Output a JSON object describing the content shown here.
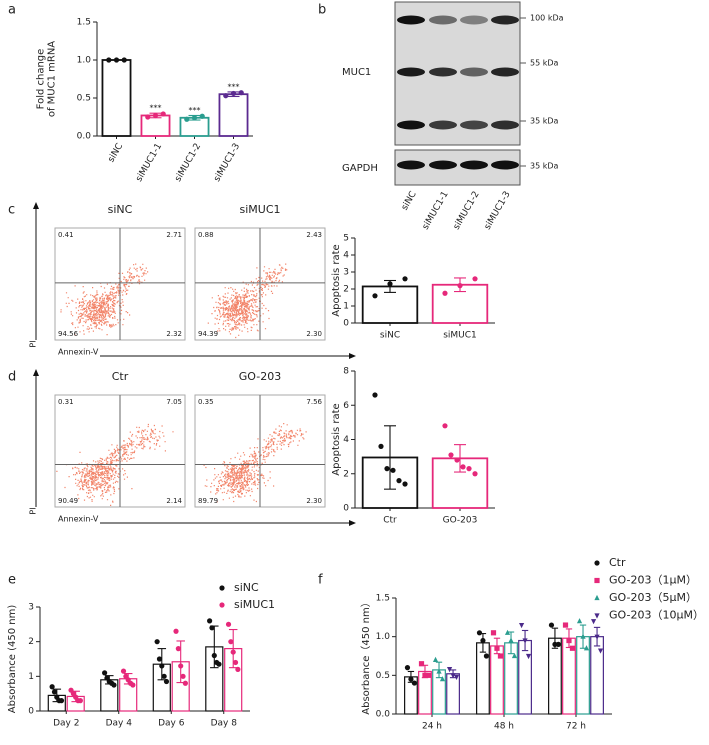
{
  "chart_data": [
    {
      "type": "bar",
      "panel": "a",
      "y_label": [
        "Fold change",
        "of MUC1 mRNA"
      ],
      "categories": [
        "siNC",
        "siMUC1-1",
        "siMUC1-2",
        "siMUC1-3"
      ],
      "values": [
        1.0,
        0.27,
        0.24,
        0.55
      ],
      "errors": [
        0,
        0.03,
        0.03,
        0.03
      ],
      "points": [
        [
          1.0,
          1.0,
          1.0
        ],
        [
          0.25,
          0.27,
          0.29
        ],
        [
          0.22,
          0.24,
          0.26
        ],
        [
          0.53,
          0.56,
          0.57
        ]
      ],
      "significance": [
        null,
        "***",
        "***",
        "***"
      ],
      "colors": [
        "#111111",
        "#e6287a",
        "#2a9d8f",
        "#5b2a90"
      ],
      "ylim": [
        0,
        1.5
      ],
      "yticks": [
        {
          "value": 0,
          "label": "0.0"
        },
        0.5,
        {
          "value": 1,
          "label": "1.0"
        },
        1.5
      ]
    },
    {
      "type": "bar",
      "y_label": "Apoptosis rate",
      "categories": [
        "siNC",
        "siMUC1"
      ],
      "values": [
        2.15,
        2.25
      ],
      "errors": [
        0.35,
        0.4
      ],
      "points": [
        [
          1.6,
          2.3,
          2.6
        ],
        [
          1.75,
          2.2,
          2.6
        ]
      ],
      "colors": [
        "#111111",
        "#e6287a"
      ],
      "ylim": [
        0,
        5
      ],
      "yticks": [
        0,
        1,
        2,
        3,
        4,
        5
      ]
    },
    {
      "type": "bar",
      "y_label": "Apoptosis rate",
      "categories": [
        "Ctr",
        "GO-203"
      ],
      "values": [
        2.95,
        2.9
      ],
      "errors": [
        1.85,
        0.8
      ],
      "points": [
        [
          6.6,
          3.6,
          2.3,
          2.2,
          1.6,
          1.4
        ],
        [
          4.8,
          3.1,
          2.8,
          2.4,
          2.3,
          2.0
        ]
      ],
      "colors": [
        "#111111",
        "#e6287a"
      ],
      "ylim": [
        0,
        8
      ],
      "yticks": [
        0,
        2,
        4,
        6,
        8
      ]
    },
    {
      "type": "bar",
      "panel": "e",
      "y_label": "Absorbance (450 nm)",
      "categories": [
        "Day 2",
        "Day 4",
        "Day 6",
        "Day 8"
      ],
      "series": [
        {
          "name": "siNC",
          "color": "#111111",
          "marker": "circle",
          "values": [
            0.45,
            0.9,
            1.35,
            1.85
          ],
          "errors": [
            0.18,
            0.12,
            0.45,
            0.6
          ],
          "points": [
            [
              0.7,
              0.55,
              0.4,
              0.3,
              0.3
            ],
            [
              1.1,
              0.95,
              0.85,
              0.8,
              0.75
            ],
            [
              2.0,
              1.5,
              1.3,
              1.0,
              0.85
            ],
            [
              2.6,
              2.4,
              1.6,
              1.4,
              1.35
            ]
          ]
        },
        {
          "name": "siMUC1",
          "color": "#e6287a",
          "marker": "circle",
          "values": [
            0.42,
            0.93,
            1.42,
            1.8
          ],
          "errors": [
            0.15,
            0.15,
            0.6,
            0.55
          ],
          "points": [
            [
              0.6,
              0.5,
              0.4,
              0.3,
              0.3
            ],
            [
              1.15,
              1.0,
              0.9,
              0.8,
              0.75
            ],
            [
              2.3,
              1.8,
              1.3,
              1.0,
              0.8
            ],
            [
              2.5,
              2.0,
              1.7,
              1.4,
              1.2
            ]
          ]
        }
      ],
      "ylim": [
        0,
        3
      ],
      "yticks": [
        0,
        1,
        2,
        3
      ]
    },
    {
      "type": "bar",
      "panel": "f",
      "y_label": "Absorbance（450 nm）",
      "categories": [
        "24 h",
        "48 h",
        "72 h"
      ],
      "series": [
        {
          "name": "Ctr",
          "color": "#111111",
          "marker": "circle",
          "values": [
            0.48,
            0.92,
            0.98
          ],
          "errors": [
            0.07,
            0.12,
            0.13
          ],
          "points": [
            [
              0.6,
              0.45,
              0.4
            ],
            [
              1.05,
              0.95,
              0.75
            ],
            [
              1.15,
              0.9,
              0.9
            ]
          ]
        },
        {
          "name": "GO-203（1μM）",
          "color": "#e6287a",
          "marker": "square",
          "values": [
            0.55,
            0.88,
            0.98
          ],
          "errors": [
            0.08,
            0.1,
            0.12
          ],
          "points": [
            [
              0.65,
              0.5,
              0.5
            ],
            [
              1.05,
              0.85,
              0.75
            ],
            [
              1.15,
              0.95,
              0.85
            ]
          ]
        },
        {
          "name": "GO-203（5μM）",
          "color": "#2a9d8f",
          "marker": "triangle",
          "values": [
            0.57,
            0.92,
            1.0
          ],
          "errors": [
            0.1,
            0.14,
            0.15
          ],
          "points": [
            [
              0.7,
              0.55,
              0.45
            ],
            [
              1.05,
              0.95,
              0.75
            ],
            [
              1.2,
              1.0,
              0.85
            ]
          ]
        },
        {
          "name": "GO-203（10μM）",
          "color": "#4b2a8a",
          "marker": "triangle-down",
          "values": [
            0.52,
            0.95,
            1.0
          ],
          "errors": [
            0.05,
            0.13,
            0.12
          ],
          "points": [
            [
              0.58,
              0.5,
              0.48
            ],
            [
              1.15,
              0.95,
              0.75
            ],
            [
              1.2,
              1.0,
              0.82
            ]
          ]
        }
      ],
      "ylim": [
        0,
        1.5
      ],
      "yticks": [
        {
          "value": 0,
          "label": "0.0"
        },
        0.5,
        {
          "value": 1,
          "label": "1.0"
        },
        1.5
      ]
    }
  ],
  "blot": {
    "panel": "b",
    "proteins": [
      "MUC1",
      "GAPDH"
    ],
    "markers": [
      "100 kDa",
      "55 kDa",
      "35 kDa",
      "35 kDa"
    ],
    "lanes": [
      "siNC",
      "siMUC1-1",
      "siMUC1-2",
      "siMUC1-3"
    ]
  },
  "flow": [
    {
      "panel": "c",
      "y_label": "PI",
      "x_label": "Annexin-V",
      "plots": [
        {
          "title": "siNC",
          "quadrants": [
            "0.41",
            "2.71",
            "94.56",
            "2.32"
          ]
        },
        {
          "title": "siMUC1",
          "quadrants": [
            "0.88",
            "2.43",
            "94.39",
            "2.30"
          ]
        }
      ]
    },
    {
      "panel": "d",
      "y_label": "PI",
      "x_label": "Annexin-V",
      "plots": [
        {
          "title": "Ctr",
          "quadrants": [
            "0.31",
            "7.05",
            "90.49",
            "2.14"
          ]
        },
        {
          "title": "GO-203",
          "quadrants": [
            "0.35",
            "7.56",
            "89.79",
            "2.30"
          ]
        }
      ]
    }
  ]
}
